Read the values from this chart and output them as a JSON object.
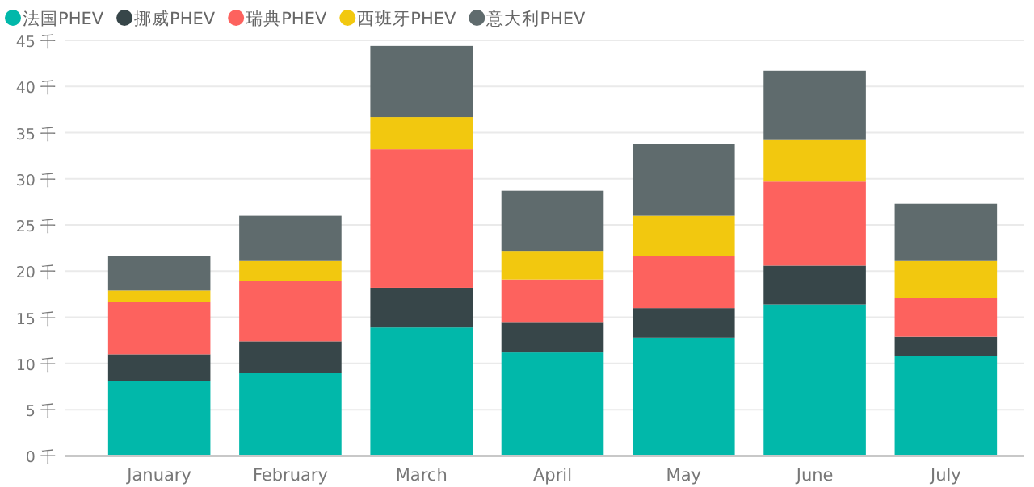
{
  "chart_data": {
    "type": "bar",
    "stacked": true,
    "grid": "y",
    "legend": "top left",
    "categories": [
      "January",
      "February",
      "March",
      "April",
      "May",
      "June",
      "July"
    ],
    "ylim": [
      0,
      45
    ],
    "yticks": [
      {
        "value": 0,
        "label": "0 千"
      },
      {
        "value": 5,
        "label": "5 千"
      },
      {
        "value": 10,
        "label": "10 千"
      },
      {
        "value": 15,
        "label": "15 千"
      },
      {
        "value": 20,
        "label": "20 千"
      },
      {
        "value": 25,
        "label": "25 千"
      },
      {
        "value": 30,
        "label": "30 千"
      },
      {
        "value": 35,
        "label": "35 千"
      },
      {
        "value": 40,
        "label": "40 千"
      },
      {
        "value": 45,
        "label": "45 千"
      }
    ],
    "series": [
      {
        "name": "法国PHEV",
        "color": "#01b8aa",
        "values": [
          8.1,
          9.0,
          13.9,
          11.2,
          12.8,
          16.4,
          10.8
        ]
      },
      {
        "name": "挪威PHEV",
        "color": "#374649",
        "values": [
          2.9,
          3.4,
          4.3,
          3.3,
          3.2,
          4.2,
          2.1
        ]
      },
      {
        "name": "瑞典PHEV",
        "color": "#fd625e",
        "values": [
          5.7,
          6.5,
          15.0,
          4.6,
          5.6,
          9.1,
          4.2
        ]
      },
      {
        "name": "西班牙PHEV",
        "color": "#f2c80f",
        "values": [
          1.2,
          2.2,
          3.5,
          3.1,
          4.4,
          4.5,
          4.0
        ]
      },
      {
        "name": "意大利PHEV",
        "color": "#5f6b6d",
        "values": [
          3.7,
          4.9,
          7.7,
          6.5,
          7.8,
          7.5,
          6.2
        ]
      }
    ]
  }
}
